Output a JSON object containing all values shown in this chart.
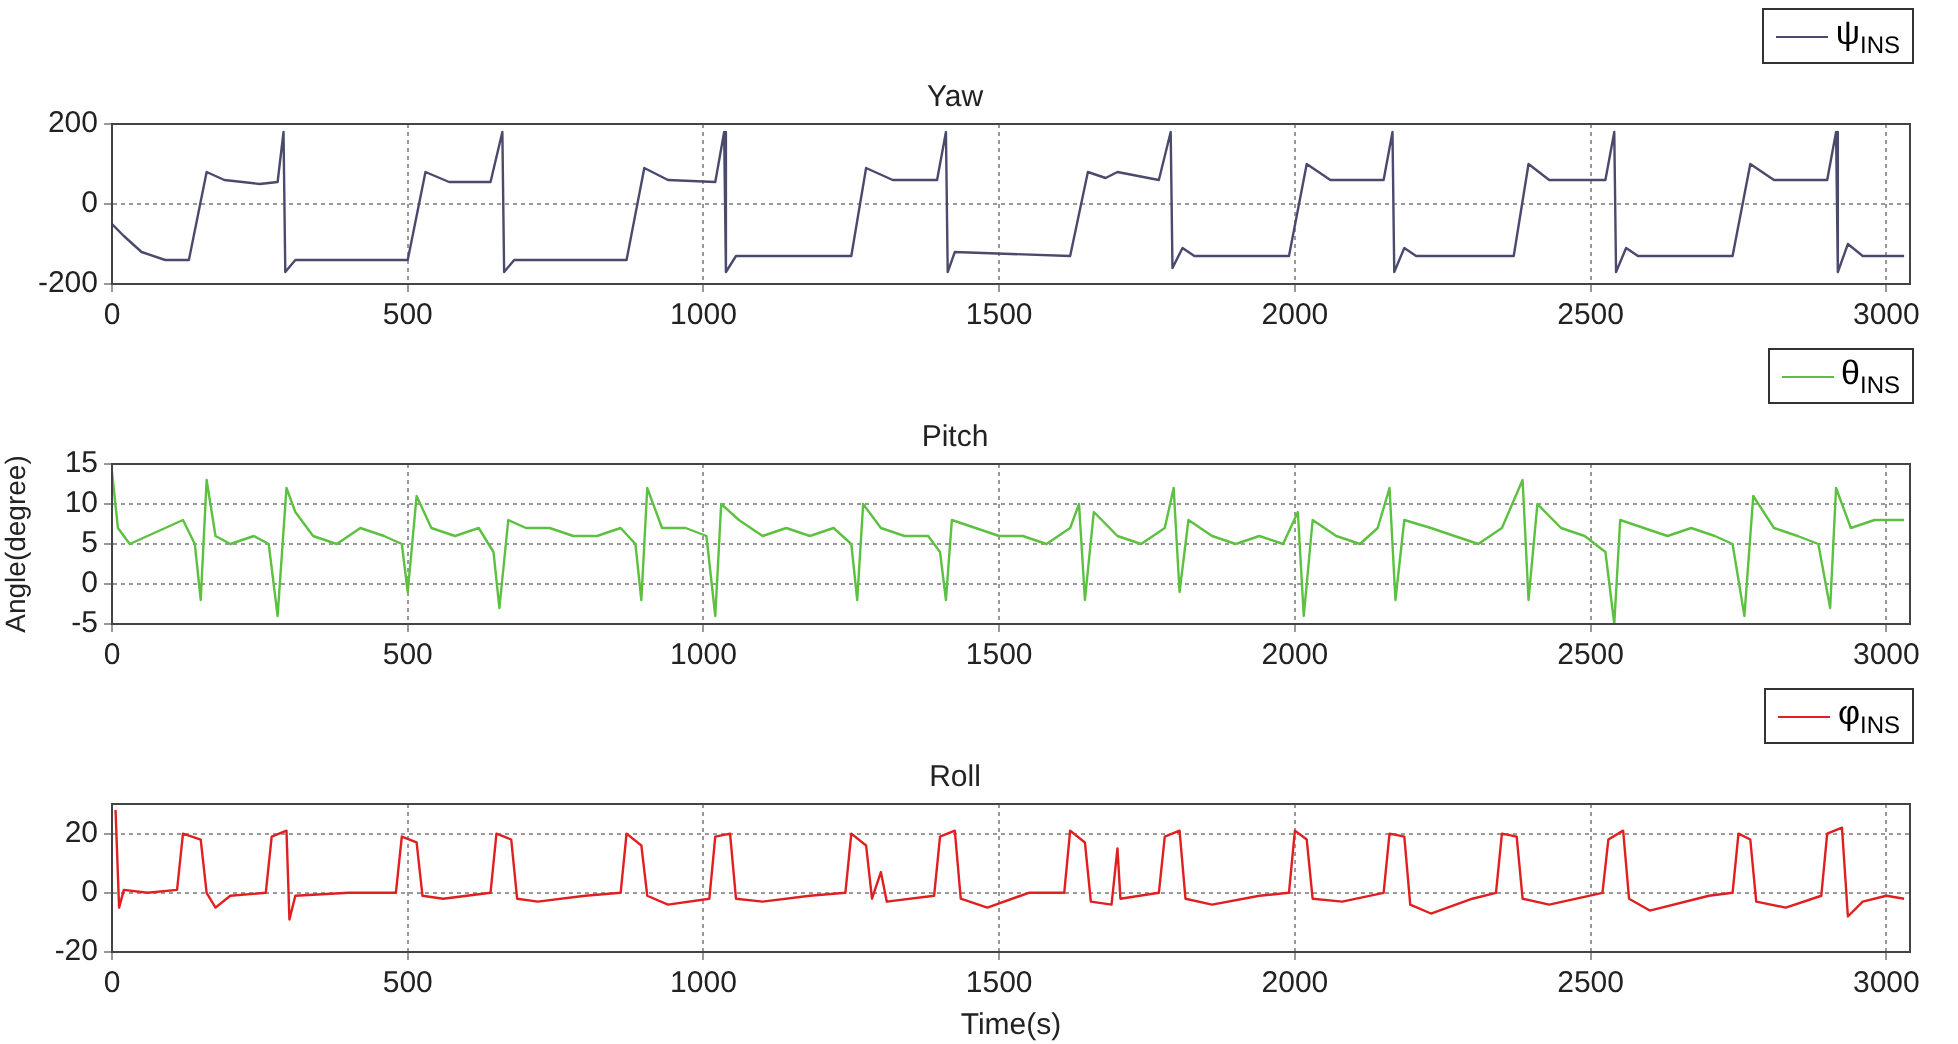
{
  "chart_data": [
    {
      "type": "line",
      "title": "Yaw",
      "xlim": [
        0,
        3040
      ],
      "xticks": [
        0,
        500,
        1000,
        1500,
        2000,
        2500,
        3000
      ],
      "ylim": [
        -200,
        200
      ],
      "yticks": [
        -200,
        0,
        200
      ],
      "grid": true,
      "legend": "top right",
      "marker": "none",
      "line_style": "solid",
      "series": [
        {
          "name": "ψ$_{INS}$",
          "color": "#4a4a6e",
          "x": [
            0,
            20,
            50,
            90,
            130,
            160,
            190,
            250,
            280,
            290,
            293,
            310,
            500,
            530,
            570,
            640,
            660,
            663,
            680,
            870,
            900,
            940,
            1020,
            1035,
            1038,
            1055,
            1250,
            1275,
            1320,
            1395,
            1410,
            1413,
            1425,
            1620,
            1650,
            1680,
            1700,
            1770,
            1790,
            1793,
            1810,
            1830,
            1990,
            2020,
            2060,
            2150,
            2165,
            2168,
            2185,
            2205,
            2370,
            2395,
            2430,
            2525,
            2540,
            2543,
            2560,
            2580,
            2740,
            2770,
            2810,
            2900,
            2915,
            2918,
            2935,
            2960,
            3030
          ],
          "values": [
            -50,
            -80,
            -120,
            -140,
            -140,
            80,
            60,
            50,
            55,
            180,
            -170,
            -140,
            -140,
            80,
            55,
            55,
            180,
            -170,
            -140,
            -140,
            90,
            60,
            55,
            180,
            -170,
            -130,
            -130,
            90,
            60,
            60,
            180,
            -170,
            -120,
            -130,
            80,
            65,
            80,
            60,
            180,
            -160,
            -110,
            -130,
            -130,
            100,
            60,
            60,
            180,
            -170,
            -110,
            -130,
            -130,
            100,
            60,
            60,
            180,
            -170,
            -110,
            -130,
            -130,
            100,
            60,
            60,
            180,
            -170,
            -100,
            -130,
            -130
          ]
        }
      ]
    },
    {
      "type": "line",
      "title": "Pitch",
      "ylabel": "Angle(degree)",
      "xlim": [
        0,
        3040
      ],
      "xticks": [
        0,
        500,
        1000,
        1500,
        2000,
        2500,
        3000
      ],
      "ylim": [
        -5,
        15
      ],
      "yticks": [
        -5,
        0,
        5,
        10,
        15
      ],
      "grid": true,
      "legend": "top right",
      "marker": "none",
      "line_style": "solid",
      "series": [
        {
          "name": "θ$_{INS}$",
          "color": "#5cc040",
          "x": [
            0,
            10,
            30,
            60,
            90,
            120,
            140,
            150,
            160,
            175,
            200,
            240,
            265,
            280,
            295,
            310,
            340,
            380,
            420,
            460,
            490,
            500,
            515,
            540,
            580,
            620,
            645,
            655,
            670,
            700,
            740,
            780,
            820,
            860,
            885,
            895,
            905,
            930,
            970,
            1005,
            1020,
            1030,
            1060,
            1100,
            1140,
            1180,
            1220,
            1250,
            1260,
            1270,
            1300,
            1340,
            1380,
            1400,
            1410,
            1420,
            1460,
            1500,
            1540,
            1580,
            1620,
            1635,
            1645,
            1660,
            1700,
            1740,
            1780,
            1795,
            1805,
            1820,
            1860,
            1900,
            1940,
            1980,
            2005,
            2015,
            2030,
            2070,
            2110,
            2140,
            2160,
            2170,
            2185,
            2230,
            2270,
            2310,
            2350,
            2385,
            2395,
            2410,
            2450,
            2490,
            2525,
            2540,
            2550,
            2590,
            2630,
            2670,
            2710,
            2740,
            2760,
            2775,
            2810,
            2850,
            2885,
            2905,
            2915,
            2940,
            2980,
            3030
          ],
          "values": [
            14,
            7,
            5,
            6,
            7,
            8,
            5,
            -2,
            13,
            6,
            5,
            6,
            5,
            -4,
            12,
            9,
            6,
            5,
            7,
            6,
            5,
            -1,
            11,
            7,
            6,
            7,
            4,
            -3,
            8,
            7,
            7,
            6,
            6,
            7,
            5,
            -2,
            12,
            7,
            7,
            6,
            -4,
            10,
            8,
            6,
            7,
            6,
            7,
            5,
            -2,
            10,
            7,
            6,
            6,
            4,
            -2,
            8,
            7,
            6,
            6,
            5,
            7,
            10,
            -2,
            9,
            6,
            5,
            7,
            12,
            -1,
            8,
            6,
            5,
            6,
            5,
            9,
            -4,
            8,
            6,
            5,
            7,
            12,
            -2,
            8,
            7,
            6,
            5,
            7,
            13,
            -2,
            10,
            7,
            6,
            4,
            -5,
            8,
            7,
            6,
            7,
            6,
            5,
            -4,
            11,
            7,
            6,
            5,
            -3,
            12,
            7,
            8,
            8
          ]
        }
      ]
    },
    {
      "type": "line",
      "title": "Roll",
      "xlabel": "Time(s)",
      "xlim": [
        0,
        3040
      ],
      "xticks": [
        0,
        500,
        1000,
        1500,
        2000,
        2500,
        3000
      ],
      "ylim": [
        -20,
        30
      ],
      "yticks": [
        -20,
        0,
        20
      ],
      "grid": true,
      "legend": "top right",
      "marker": "none",
      "line_style": "solid",
      "series": [
        {
          "name": "φ$_{INS}$",
          "color": "#e02020",
          "x": [
            6,
            12,
            20,
            60,
            110,
            120,
            150,
            160,
            175,
            200,
            260,
            270,
            295,
            300,
            310,
            400,
            480,
            490,
            515,
            525,
            560,
            640,
            650,
            675,
            685,
            720,
            800,
            860,
            870,
            895,
            905,
            940,
            1010,
            1020,
            1045,
            1055,
            1100,
            1180,
            1240,
            1250,
            1275,
            1285,
            1300,
            1310,
            1390,
            1400,
            1425,
            1435,
            1480,
            1550,
            1610,
            1620,
            1645,
            1655,
            1690,
            1700,
            1705,
            1770,
            1780,
            1805,
            1815,
            1860,
            1940,
            1990,
            2000,
            2020,
            2030,
            2080,
            2150,
            2160,
            2185,
            2195,
            2230,
            2300,
            2340,
            2350,
            2375,
            2385,
            2430,
            2520,
            2530,
            2555,
            2565,
            2600,
            2700,
            2740,
            2750,
            2770,
            2780,
            2830,
            2890,
            2900,
            2925,
            2935,
            2960,
            3000,
            3030
          ],
          "values": [
            28,
            -5,
            1,
            0,
            1,
            20,
            18,
            0,
            -5,
            -1,
            0,
            19,
            21,
            -9,
            -1,
            0,
            0,
            19,
            17,
            -1,
            -2,
            0,
            20,
            18,
            -2,
            -3,
            -1,
            0,
            20,
            16,
            -1,
            -4,
            -2,
            19,
            20,
            -2,
            -3,
            -1,
            0,
            20,
            16,
            -2,
            7,
            -3,
            -1,
            19,
            21,
            -2,
            -5,
            0,
            0,
            21,
            17,
            -3,
            -4,
            15,
            -2,
            0,
            19,
            21,
            -2,
            -4,
            -1,
            0,
            21,
            18,
            -2,
            -3,
            0,
            20,
            19,
            -4,
            -7,
            -2,
            0,
            20,
            19,
            -2,
            -4,
            0,
            18,
            21,
            -2,
            -6,
            -1,
            0,
            20,
            18,
            -3,
            -5,
            -1,
            20,
            22,
            -8,
            -3,
            -1,
            -2
          ]
        }
      ]
    }
  ]
}
